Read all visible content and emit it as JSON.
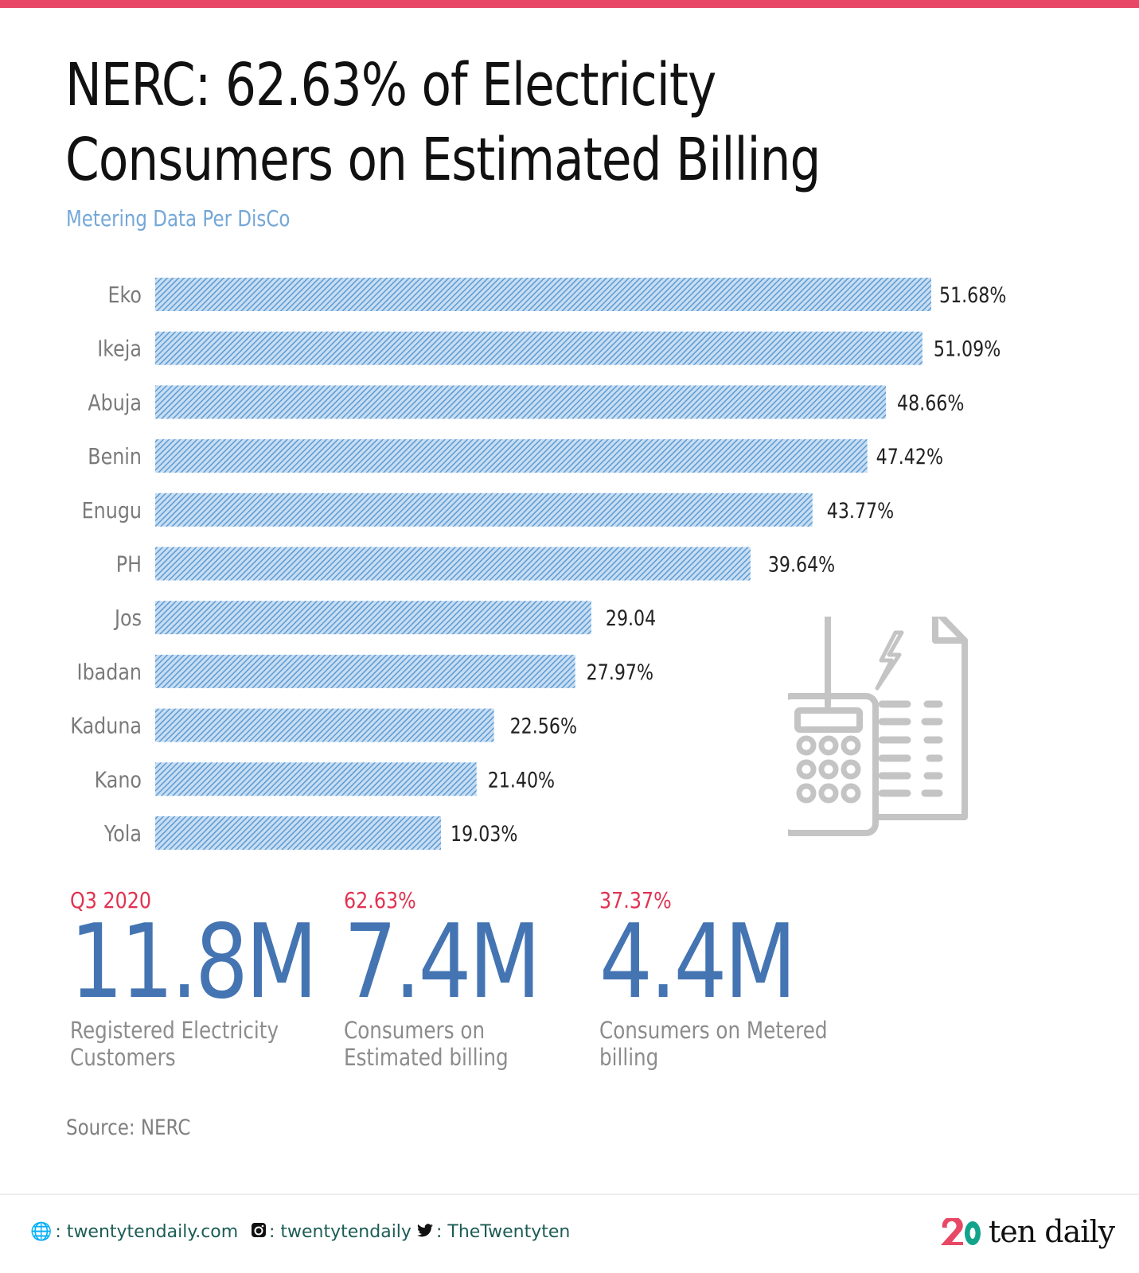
{
  "header": {
    "title_line1": "NERC: 62.63% of Electricity",
    "title_line2": "Consumers on Estimated Billing",
    "subtitle": "Metering Data Per DisCo",
    "accent_color": "#e84865"
  },
  "chart_data": {
    "type": "bar",
    "orientation": "horizontal",
    "title": "Metering Data Per DisCo",
    "xlabel": "",
    "ylabel": "",
    "categories": [
      "Eko",
      "Ikeja",
      "Abuja",
      "Benin",
      "Enugu",
      "PH",
      "Jos",
      "Ibadan",
      "Kaduna",
      "Kano",
      "Yola"
    ],
    "values": [
      51.68,
      51.09,
      48.66,
      47.42,
      43.77,
      39.64,
      29.04,
      27.97,
      22.56,
      21.4,
      19.03
    ],
    "value_labels": [
      "51.68%",
      "51.09%",
      "48.66%",
      "47.42%",
      "43.77%",
      "39.64%",
      "29.04",
      "27.97%",
      "22.56%",
      "21.40%",
      "19.03%"
    ],
    "xlim": [
      0,
      60
    ],
    "grid": false,
    "legend": "none",
    "bar_color": "#5b9bd5",
    "bar_fill": "hatched"
  },
  "illustration": {
    "icon": "bill-calculator-icon"
  },
  "stats": [
    {
      "kicker": "Q3 2020",
      "value": "11.8M",
      "desc_line1": "Registered Electricity",
      "desc_line2": "Customers"
    },
    {
      "kicker": "62.63%",
      "value": "7.4M",
      "desc_line1": "Consumers on",
      "desc_line2": "Estimated billing"
    },
    {
      "kicker": "37.37%",
      "value": "4.4M",
      "desc_line1": "Consumers on Metered",
      "desc_line2": "billing"
    }
  ],
  "source": "Source: NERC",
  "footer": {
    "website": ": twentytendaily.com",
    "instagram": ": twentytendaily",
    "twitter": ": TheTwentyten",
    "logo_text": "ten daily",
    "logo_red": "#e84865",
    "logo_green": "#13a38b"
  }
}
